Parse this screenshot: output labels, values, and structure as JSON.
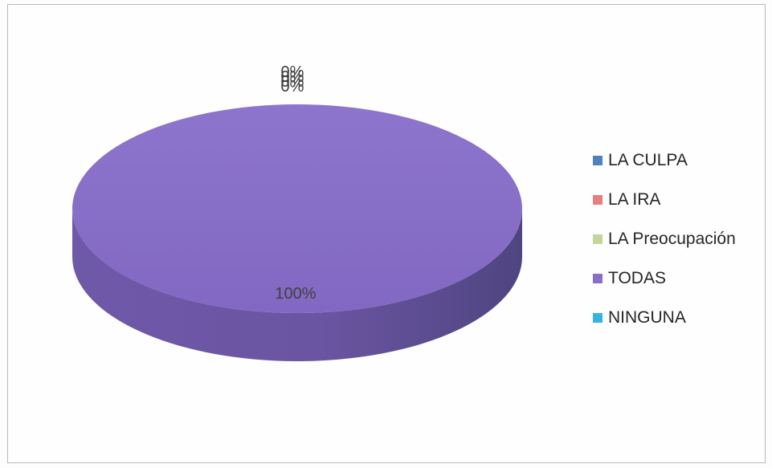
{
  "chart_data": {
    "type": "pie",
    "pie_style": "3d",
    "categories": [
      "LA CULPA",
      "LA IRA",
      "LA Preocupación",
      "TODAS",
      "NINGUNA"
    ],
    "values": [
      0,
      0,
      0,
      100,
      0
    ],
    "value_unit": "%",
    "data_labels": [
      "0%",
      "0%",
      "0%",
      "100%",
      "0%"
    ],
    "colors": [
      "#4f81bd",
      "#e87f7f",
      "#c2d69a",
      "#8a6fc8",
      "#35b4e3"
    ],
    "legend_position": "right",
    "title": ""
  }
}
